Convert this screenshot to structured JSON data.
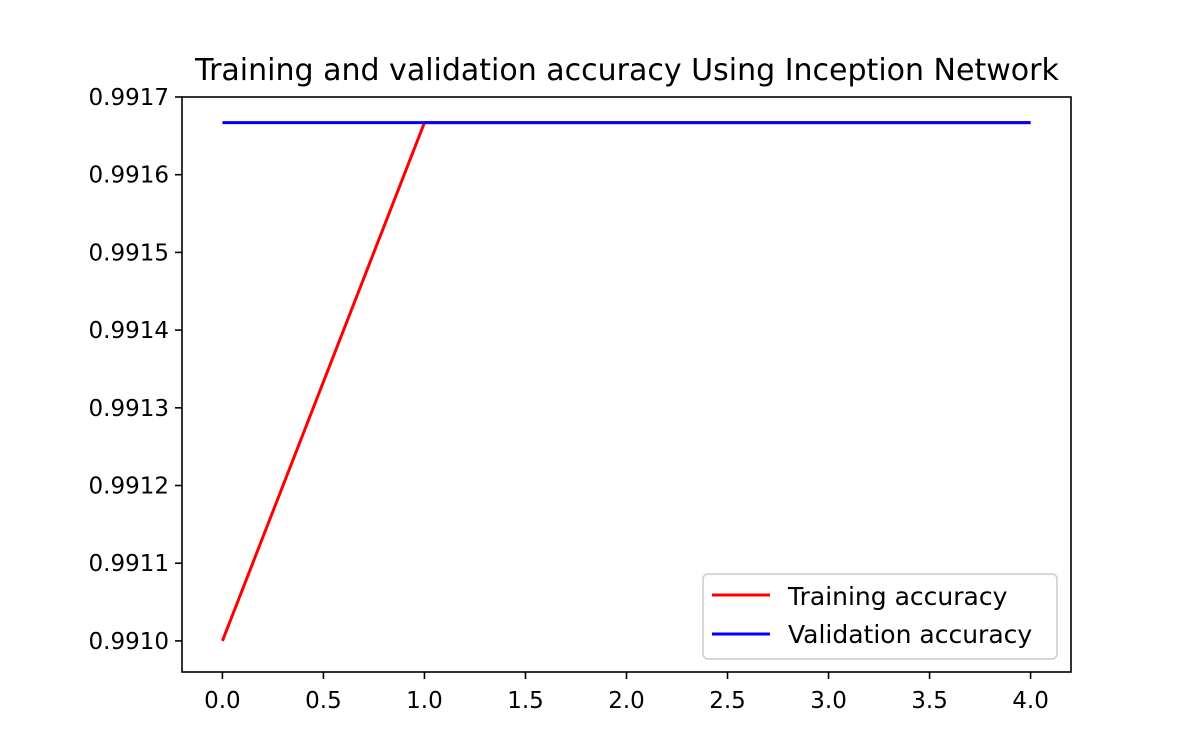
{
  "chart_data": {
    "type": "line",
    "title": "Training and validation accuracy Using Inception Network",
    "xlabel": "",
    "ylabel": "",
    "x": [
      0,
      1,
      2,
      3,
      4
    ],
    "xlim": [
      -0.2,
      4.2
    ],
    "ylim": [
      0.99096,
      0.9917
    ],
    "xticks": [
      0.0,
      0.5,
      1.0,
      1.5,
      2.0,
      2.5,
      3.0,
      3.5,
      4.0
    ],
    "xtick_labels": [
      "0.0",
      "0.5",
      "1.0",
      "1.5",
      "2.0",
      "2.5",
      "3.0",
      "3.5",
      "4.0"
    ],
    "yticks": [
      0.991,
      0.9911,
      0.9912,
      0.9913,
      0.9914,
      0.9915,
      0.9916,
      0.9917
    ],
    "ytick_labels": [
      "0.9910",
      "0.9911",
      "0.9912",
      "0.9913",
      "0.9914",
      "0.9915",
      "0.9916",
      "0.9917"
    ],
    "grid": false,
    "legend_position": "lower-right",
    "series": [
      {
        "name": "Training accuracy",
        "color": "#ff0000",
        "values": [
          0.991,
          0.991667,
          0.991667,
          0.991667,
          0.991667
        ]
      },
      {
        "name": "Validation accuracy",
        "color": "#0000ff",
        "values": [
          0.991667,
          0.991667,
          0.991667,
          0.991667,
          0.991667
        ]
      }
    ]
  }
}
